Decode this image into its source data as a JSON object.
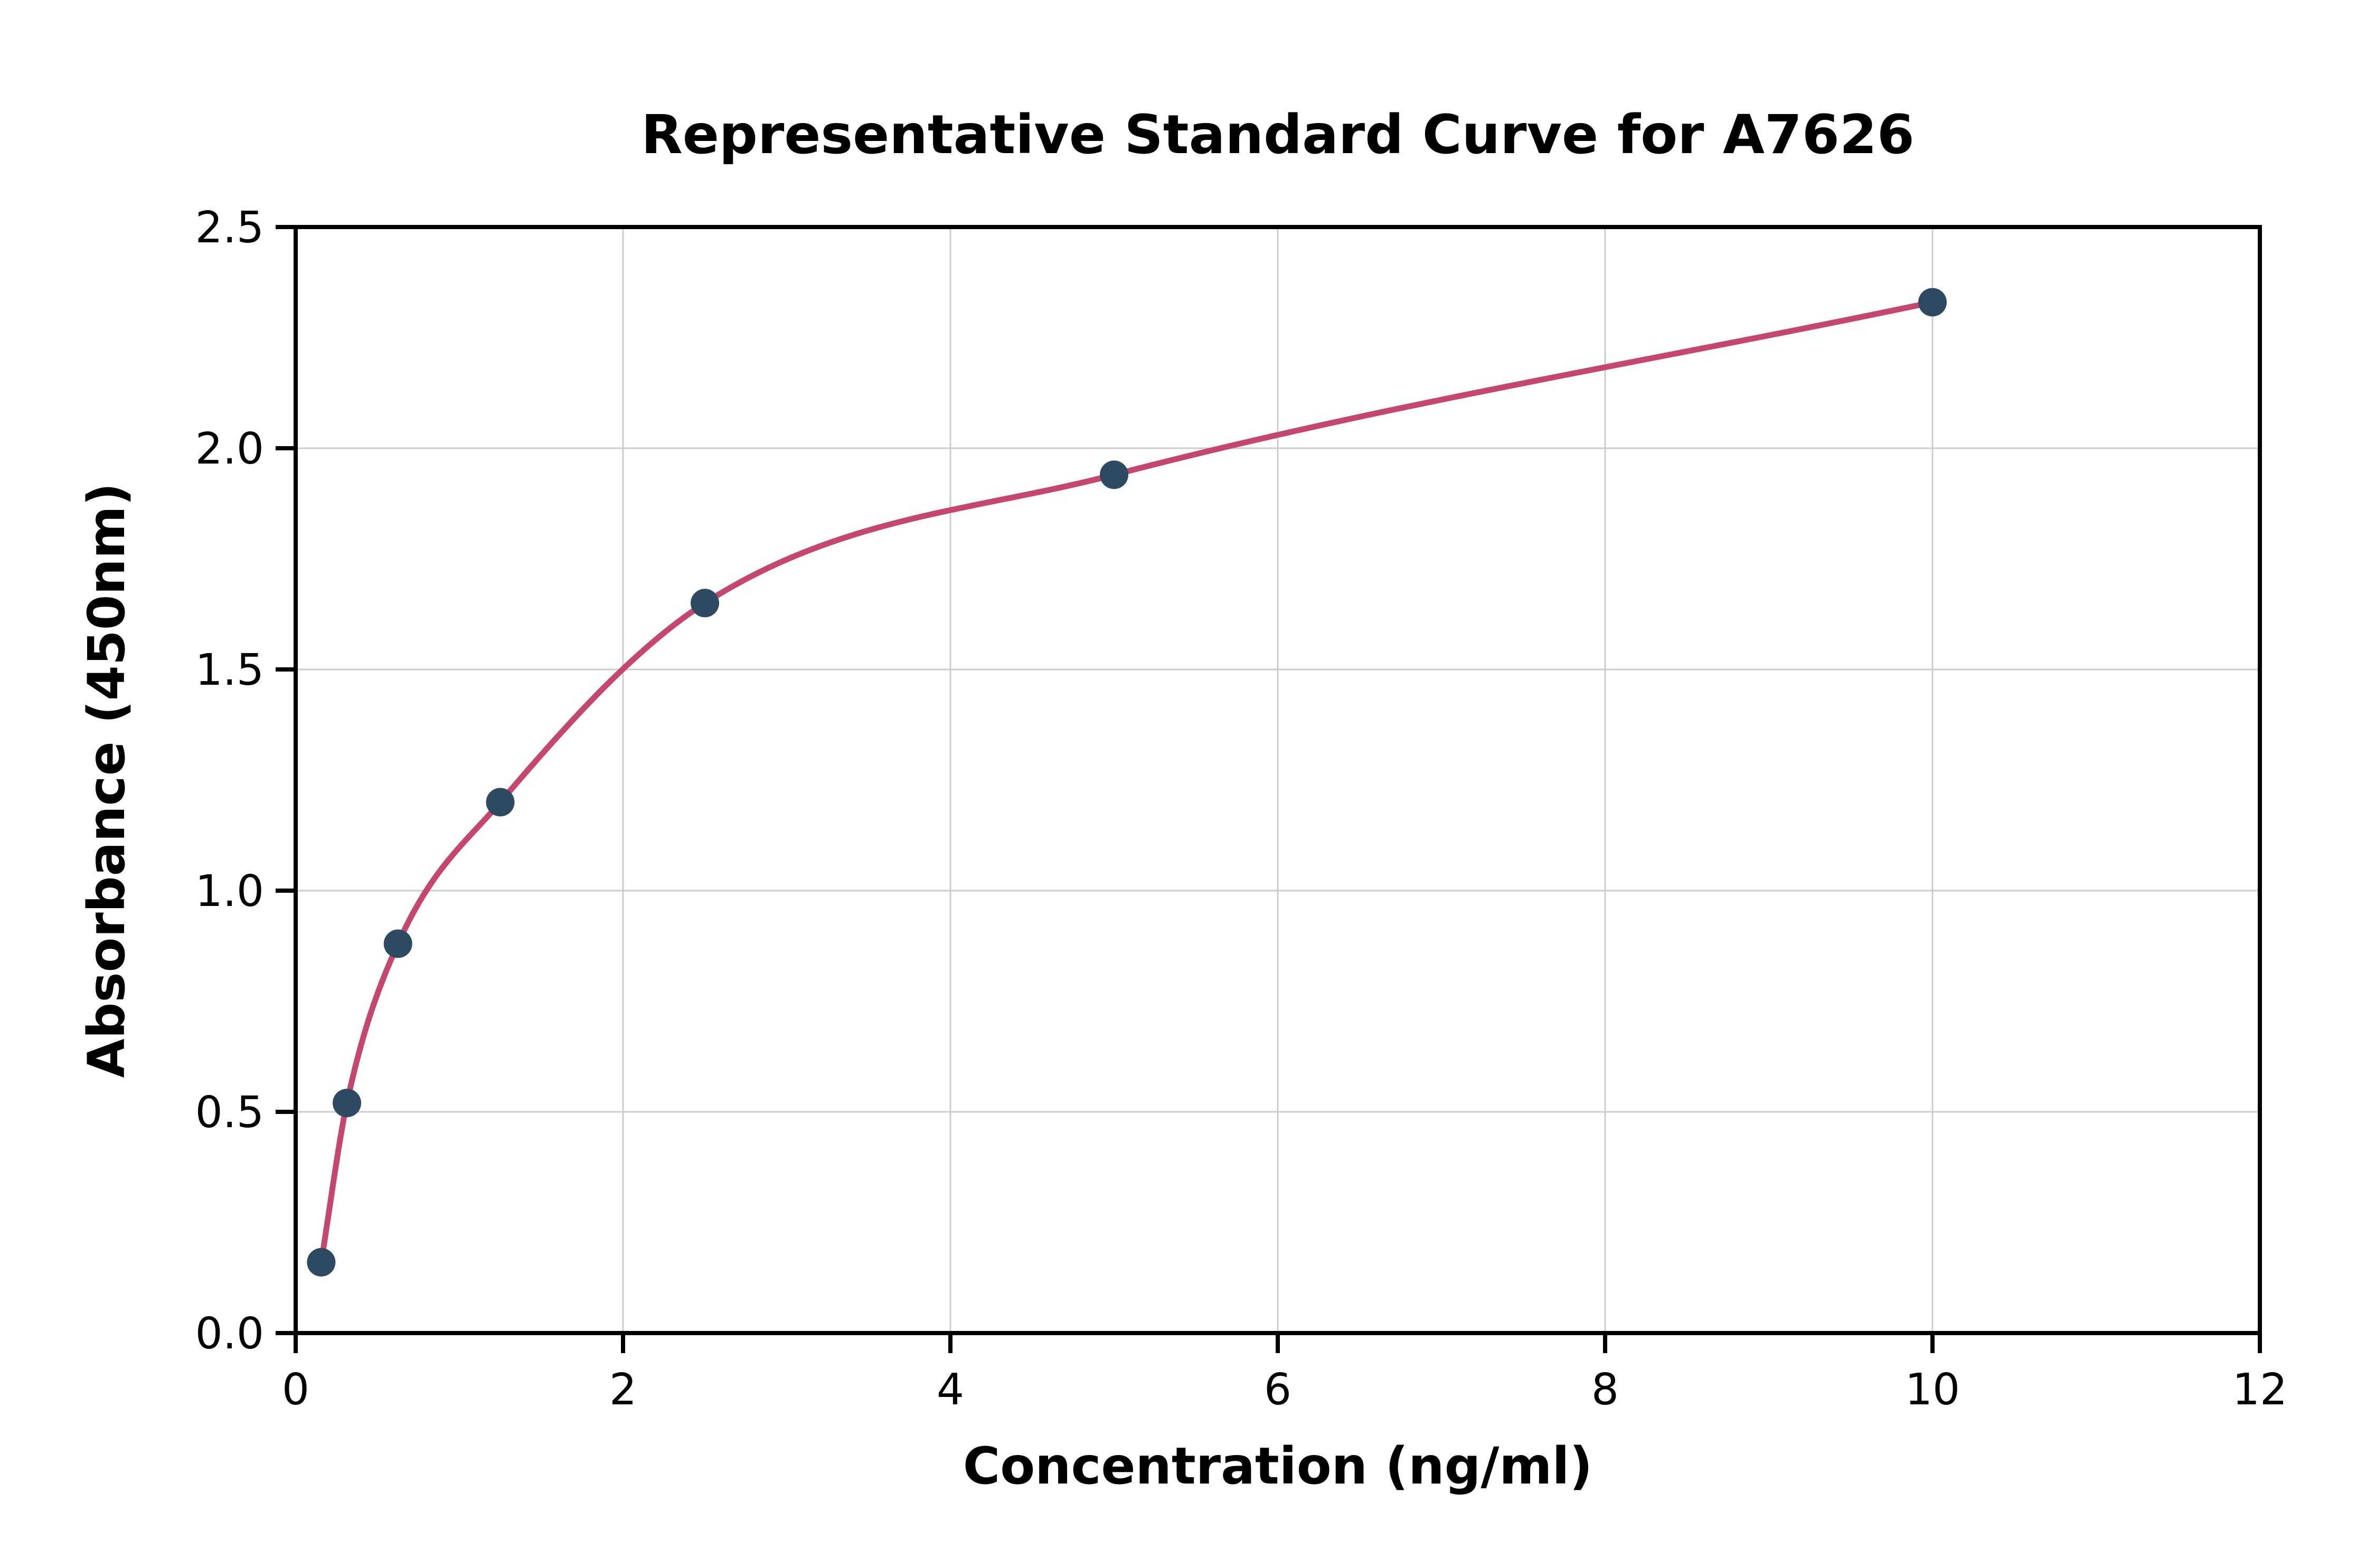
{
  "chart_data": {
    "type": "scatter",
    "title": "Representative Standard Curve for A7626",
    "xlabel": "Concentration (ng/ml)",
    "ylabel": "Absorbance (450nm)",
    "x": [
      0.156,
      0.313,
      0.625,
      1.25,
      2.5,
      5,
      10
    ],
    "y": [
      0.16,
      0.52,
      0.88,
      1.2,
      1.65,
      1.94,
      2.33
    ],
    "fit_curve": "smooth saturating curve through data points",
    "xlim": [
      0,
      12
    ],
    "ylim": [
      0,
      2.5
    ],
    "xticks": [
      0,
      2,
      4,
      6,
      8,
      10,
      12
    ],
    "yticks": [
      0,
      0.5,
      1.0,
      1.5,
      2.0,
      2.5
    ],
    "xtick_labels": [
      "0",
      "2",
      "4",
      "6",
      "8",
      "10",
      "12"
    ],
    "ytick_labels": [
      "0.0",
      "0.5",
      "1.0",
      "1.5",
      "2.0",
      "2.5"
    ],
    "grid": "on",
    "legend": "none",
    "colors": {
      "curve": "#c5476f",
      "points": "#2e4a63",
      "grid": "#cccccc",
      "frame": "#000000"
    }
  }
}
